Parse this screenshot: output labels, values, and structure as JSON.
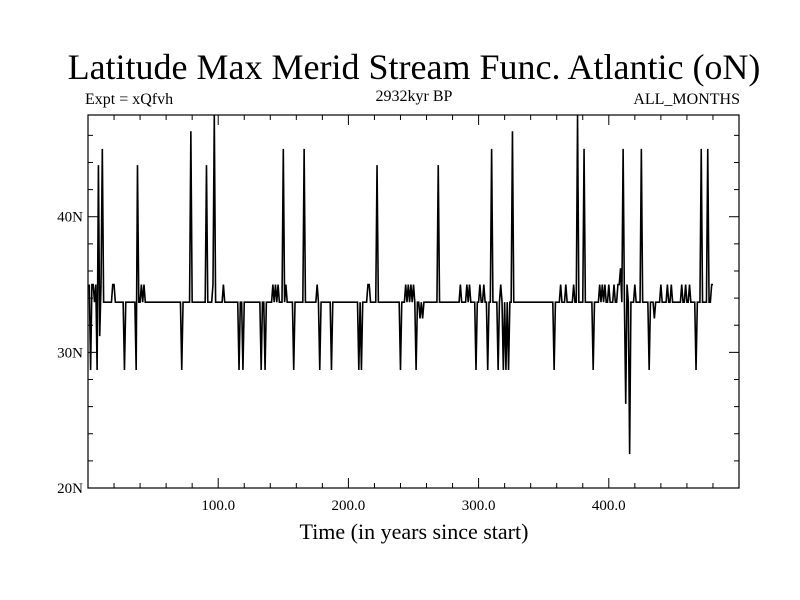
{
  "header": {
    "title": "Latitude Max Merid Stream Func. Atlantic (oN)",
    "expt": "Expt = xQfvh",
    "subtitle": "2932kyr BP",
    "months": "ALL_MONTHS"
  },
  "chart_data": {
    "type": "line",
    "title": "Latitude Max Merid Stream Func. Atlantic (oN)",
    "xlabel": "Time (in years since start)",
    "ylabel": "",
    "xlim": [
      0,
      500
    ],
    "ylim": [
      20,
      47.5
    ],
    "x_ticks": [
      100,
      200,
      300,
      400
    ],
    "x_tick_labels": [
      "100.0",
      "200.0",
      "300.0",
      "400.0"
    ],
    "y_ticks": [
      20,
      30,
      40
    ],
    "y_tick_labels": [
      "20N",
      "30N",
      "40N"
    ],
    "grid": false,
    "series": [
      {
        "color": "#000000",
        "x_start": 1,
        "x_step": 1,
        "values": [
          35.0,
          28.7,
          35.0,
          35.0,
          33.7,
          35.0,
          28.7,
          43.8,
          31.2,
          35.0,
          45.0,
          33.7,
          33.7,
          33.7,
          33.7,
          33.7,
          33.7,
          33.7,
          35.0,
          35.0,
          33.7,
          33.7,
          33.7,
          33.7,
          33.7,
          33.7,
          33.7,
          28.7,
          33.7,
          33.7,
          33.7,
          33.7,
          33.7,
          33.7,
          33.7,
          33.7,
          28.7,
          43.8,
          33.7,
          33.7,
          35.0,
          33.7,
          35.0,
          33.7,
          33.7,
          33.7,
          33.7,
          33.7,
          33.7,
          33.7,
          33.7,
          33.7,
          33.7,
          33.7,
          33.7,
          33.7,
          33.7,
          33.7,
          33.7,
          33.7,
          33.7,
          33.7,
          33.7,
          33.7,
          33.7,
          33.7,
          33.7,
          33.7,
          33.7,
          33.7,
          33.7,
          28.7,
          33.7,
          33.7,
          33.7,
          33.7,
          33.7,
          33.7,
          46.3,
          33.7,
          33.7,
          33.7,
          33.7,
          33.7,
          33.7,
          33.7,
          33.7,
          33.7,
          33.7,
          33.7,
          43.8,
          33.7,
          33.7,
          33.7,
          33.7,
          35.0,
          47.5,
          33.7,
          33.7,
          33.7,
          33.7,
          33.7,
          33.7,
          35.0,
          33.7,
          33.7,
          33.7,
          33.7,
          33.7,
          33.7,
          33.7,
          33.7,
          33.7,
          33.7,
          33.7,
          28.7,
          33.7,
          33.7,
          28.7,
          33.7,
          33.7,
          33.7,
          33.7,
          33.7,
          33.7,
          33.7,
          33.7,
          33.7,
          33.7,
          33.7,
          33.7,
          33.7,
          28.7,
          33.7,
          33.7,
          28.7,
          33.7,
          33.7,
          33.7,
          33.7,
          33.7,
          35.0,
          33.7,
          35.0,
          33.7,
          35.0,
          33.7,
          33.7,
          33.7,
          45.0,
          33.7,
          35.0,
          33.7,
          33.7,
          33.7,
          33.7,
          33.7,
          28.7,
          33.7,
          33.7,
          33.7,
          33.7,
          33.7,
          33.7,
          33.7,
          45.0,
          33.7,
          33.7,
          33.7,
          33.7,
          33.7,
          33.7,
          33.7,
          33.7,
          33.7,
          35.0,
          33.7,
          28.7,
          33.7,
          33.7,
          33.7,
          33.7,
          33.7,
          33.7,
          33.7,
          33.7,
          28.7,
          33.7,
          33.7,
          33.7,
          33.7,
          33.7,
          33.7,
          33.7,
          33.7,
          33.7,
          33.7,
          33.7,
          33.7,
          33.7,
          33.7,
          33.7,
          33.7,
          33.7,
          33.7,
          33.7,
          33.7,
          28.7,
          33.7,
          28.7,
          33.7,
          33.7,
          33.7,
          33.7,
          35.0,
          35.0,
          33.7,
          33.7,
          33.7,
          33.7,
          33.7,
          43.8,
          33.7,
          33.7,
          33.7,
          33.7,
          33.7,
          33.7,
          33.7,
          33.7,
          33.7,
          33.7,
          33.7,
          33.7,
          33.7,
          33.7,
          33.7,
          33.7,
          33.7,
          28.7,
          33.7,
          33.7,
          33.7,
          35.0,
          33.7,
          35.0,
          33.7,
          35.0,
          33.7,
          35.0,
          33.7,
          28.7,
          33.7,
          33.7,
          32.5,
          33.7,
          32.5,
          33.7,
          33.7,
          33.7,
          33.7,
          33.7,
          33.7,
          33.7,
          33.7,
          33.7,
          33.7,
          33.7,
          43.8,
          33.7,
          33.7,
          33.7,
          33.7,
          33.7,
          33.7,
          33.7,
          33.7,
          33.7,
          33.7,
          33.7,
          33.7,
          33.7,
          33.7,
          33.7,
          33.7,
          35.0,
          33.7,
          33.7,
          33.7,
          33.7,
          35.0,
          33.7,
          35.0,
          33.7,
          33.7,
          33.7,
          33.7,
          28.7,
          33.7,
          33.7,
          35.0,
          33.7,
          33.7,
          35.0,
          33.7,
          33.7,
          28.7,
          33.7,
          33.7,
          45.0,
          33.7,
          33.7,
          33.7,
          33.7,
          28.7,
          33.7,
          35.0,
          33.7,
          28.7,
          33.7,
          28.7,
          33.7,
          28.7,
          33.7,
          33.7,
          46.3,
          33.7,
          33.7,
          33.7,
          33.7,
          33.7,
          33.7,
          33.7,
          33.7,
          33.7,
          33.7,
          33.7,
          33.7,
          33.7,
          33.7,
          33.7,
          33.7,
          33.7,
          33.7,
          33.7,
          33.7,
          33.7,
          33.7,
          33.7,
          33.7,
          33.7,
          33.7,
          33.7,
          33.7,
          33.7,
          33.7,
          33.7,
          28.7,
          33.7,
          33.7,
          33.7,
          33.7,
          35.0,
          33.7,
          33.7,
          33.7,
          35.0,
          33.7,
          33.7,
          33.7,
          33.7,
          33.7,
          35.0,
          33.7,
          33.7,
          47.5,
          33.7,
          33.7,
          33.7,
          33.7,
          45.0,
          33.7,
          33.7,
          33.7,
          33.7,
          33.7,
          33.7,
          28.7,
          33.7,
          33.7,
          33.7,
          33.7,
          35.0,
          33.7,
          35.0,
          33.7,
          35.0,
          33.7,
          33.7,
          35.0,
          33.7,
          33.7,
          33.7,
          35.0,
          33.7,
          33.7,
          35.0,
          35.0,
          36.2,
          33.7,
          45.0,
          33.7,
          26.2,
          35.0,
          33.7,
          22.5,
          33.7,
          33.7,
          33.7,
          35.0,
          33.7,
          33.7,
          33.7,
          33.7,
          45.0,
          33.7,
          33.7,
          33.7,
          33.7,
          33.7,
          28.7,
          33.7,
          33.7,
          33.7,
          32.5,
          33.7,
          33.7,
          33.7,
          33.7,
          35.0,
          33.7,
          33.7,
          33.7,
          33.7,
          35.0,
          33.7,
          33.7,
          35.0,
          33.7,
          33.7,
          33.7,
          33.7,
          33.7,
          33.7,
          33.7,
          35.0,
          33.7,
          33.7,
          35.0,
          33.7,
          33.7,
          35.0,
          33.7,
          33.7,
          33.7,
          33.7,
          28.7,
          33.7,
          33.7,
          33.7,
          45.0,
          33.7,
          33.7,
          33.7,
          33.7,
          45.0,
          33.7,
          33.7,
          35.0,
          35.0
        ]
      }
    ]
  }
}
